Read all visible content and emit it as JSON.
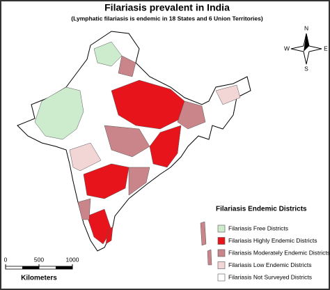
{
  "header": {
    "title": "Filariasis prevalent in India",
    "subtitle": "(Lymphatic filariasis is endemic in 18 States and 6 Union Territories)"
  },
  "compass": {
    "n": "N",
    "s": "S",
    "e": "E",
    "w": "W"
  },
  "legend": {
    "title": "Filariasis Endemic Districts",
    "items": [
      {
        "label": "Filariasis Free Districts",
        "color": "#cdeccd"
      },
      {
        "label": "Filariasis Highly Endemic Districts",
        "color": "#e8141c"
      },
      {
        "label": "Filariasis Moderately Endemic Districts",
        "color": "#c98589"
      },
      {
        "label": "Filariasis Low Endemic Districts",
        "color": "#f2d5d5"
      },
      {
        "label": "Filariasis Not Surveyed Districts",
        "color": "#ffffff"
      }
    ]
  },
  "scale_bar": {
    "ticks": [
      0,
      500,
      1000
    ],
    "unit": "Kilometers"
  }
}
